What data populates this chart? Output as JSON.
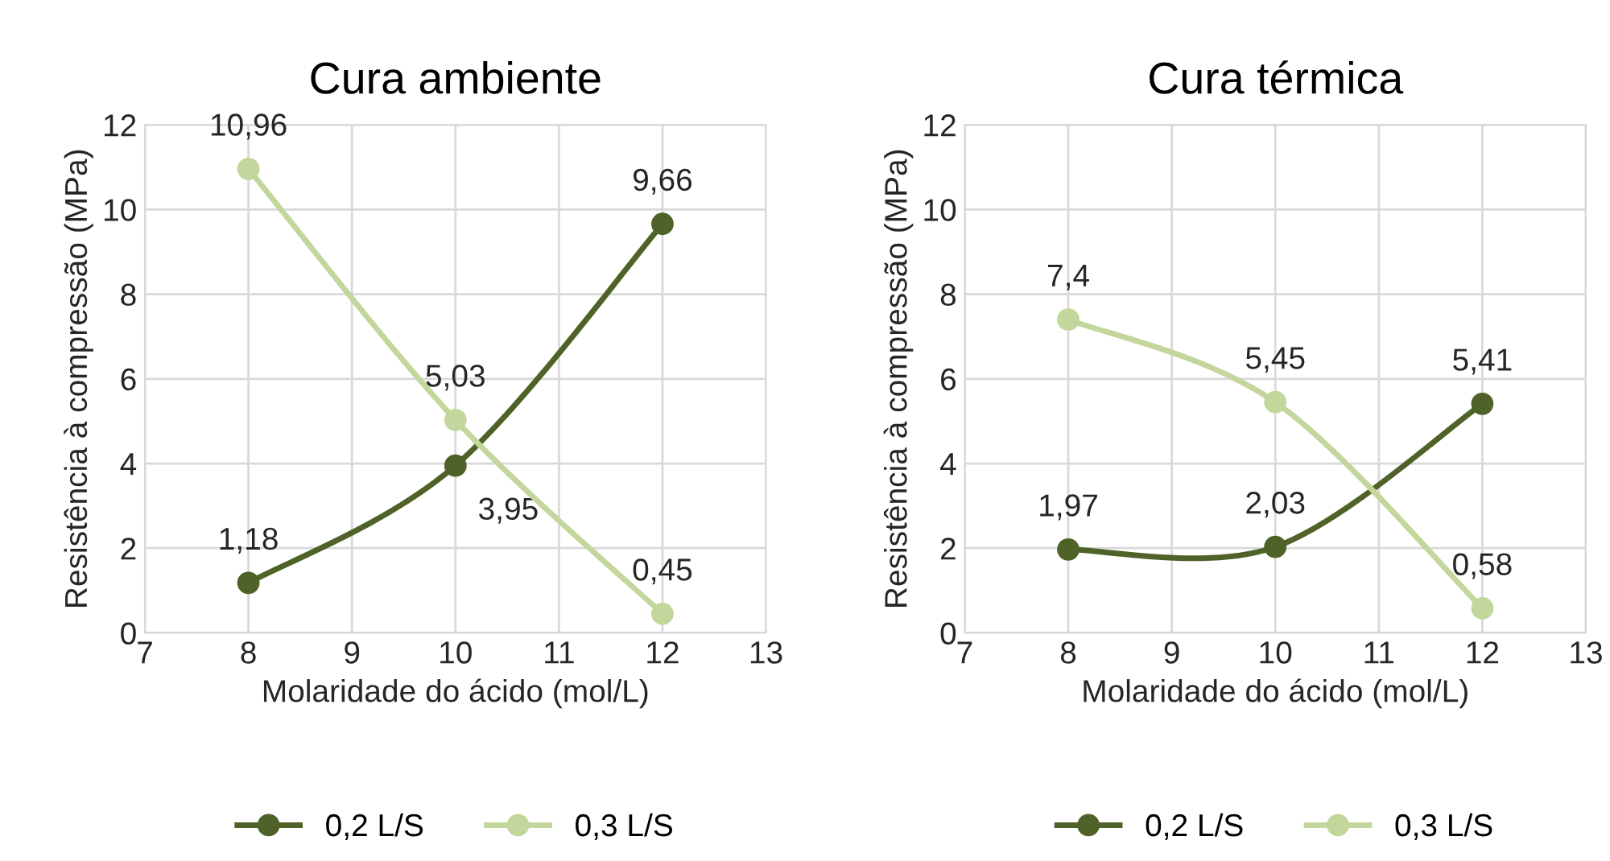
{
  "chart_data": [
    {
      "type": "line",
      "title": "Cura ambiente",
      "xlabel": "Molaridade do ácido (mol/L)",
      "ylabel": "Resistência à compressão (MPa)",
      "x": [
        8,
        10,
        12
      ],
      "xlim": [
        7,
        13
      ],
      "xticks": [
        7,
        8,
        9,
        10,
        11,
        12,
        13
      ],
      "ylim": [
        0,
        12
      ],
      "yticks": [
        0,
        2,
        4,
        6,
        8,
        10,
        12
      ],
      "grid": true,
      "legend": "bottom",
      "marker": "circle",
      "line_style": "solid",
      "series": [
        {
          "name": "0,2 L/S",
          "color": "#4f6228",
          "values": [
            1.18,
            3.95,
            9.66
          ],
          "value_labels": [
            "1,18",
            "3,95",
            "9,66"
          ]
        },
        {
          "name": "0,3 L/S",
          "color": "#c3d69b",
          "values": [
            10.96,
            5.03,
            0.45
          ],
          "value_labels": [
            "10,96",
            "5,03",
            "0,45"
          ]
        }
      ]
    },
    {
      "type": "line",
      "title": "Cura térmica",
      "xlabel": "Molaridade do ácido (mol/L)",
      "ylabel": "Resistência à compressão (MPa)",
      "x": [
        8,
        10,
        12
      ],
      "xlim": [
        7,
        13
      ],
      "xticks": [
        7,
        8,
        9,
        10,
        11,
        12,
        13
      ],
      "ylim": [
        0,
        12
      ],
      "yticks": [
        0,
        2,
        4,
        6,
        8,
        10,
        12
      ],
      "grid": true,
      "legend": "bottom",
      "marker": "circle",
      "line_style": "solid",
      "series": [
        {
          "name": "0,2 L/S",
          "color": "#4f6228",
          "values": [
            1.97,
            2.03,
            5.41
          ],
          "value_labels": [
            "1,97",
            "2,03",
            "5,41"
          ]
        },
        {
          "name": "0,3 L/S",
          "color": "#c3d69b",
          "values": [
            7.4,
            5.45,
            0.58
          ],
          "value_labels": [
            "7,4",
            "5,45",
            "0,58"
          ]
        }
      ]
    }
  ]
}
